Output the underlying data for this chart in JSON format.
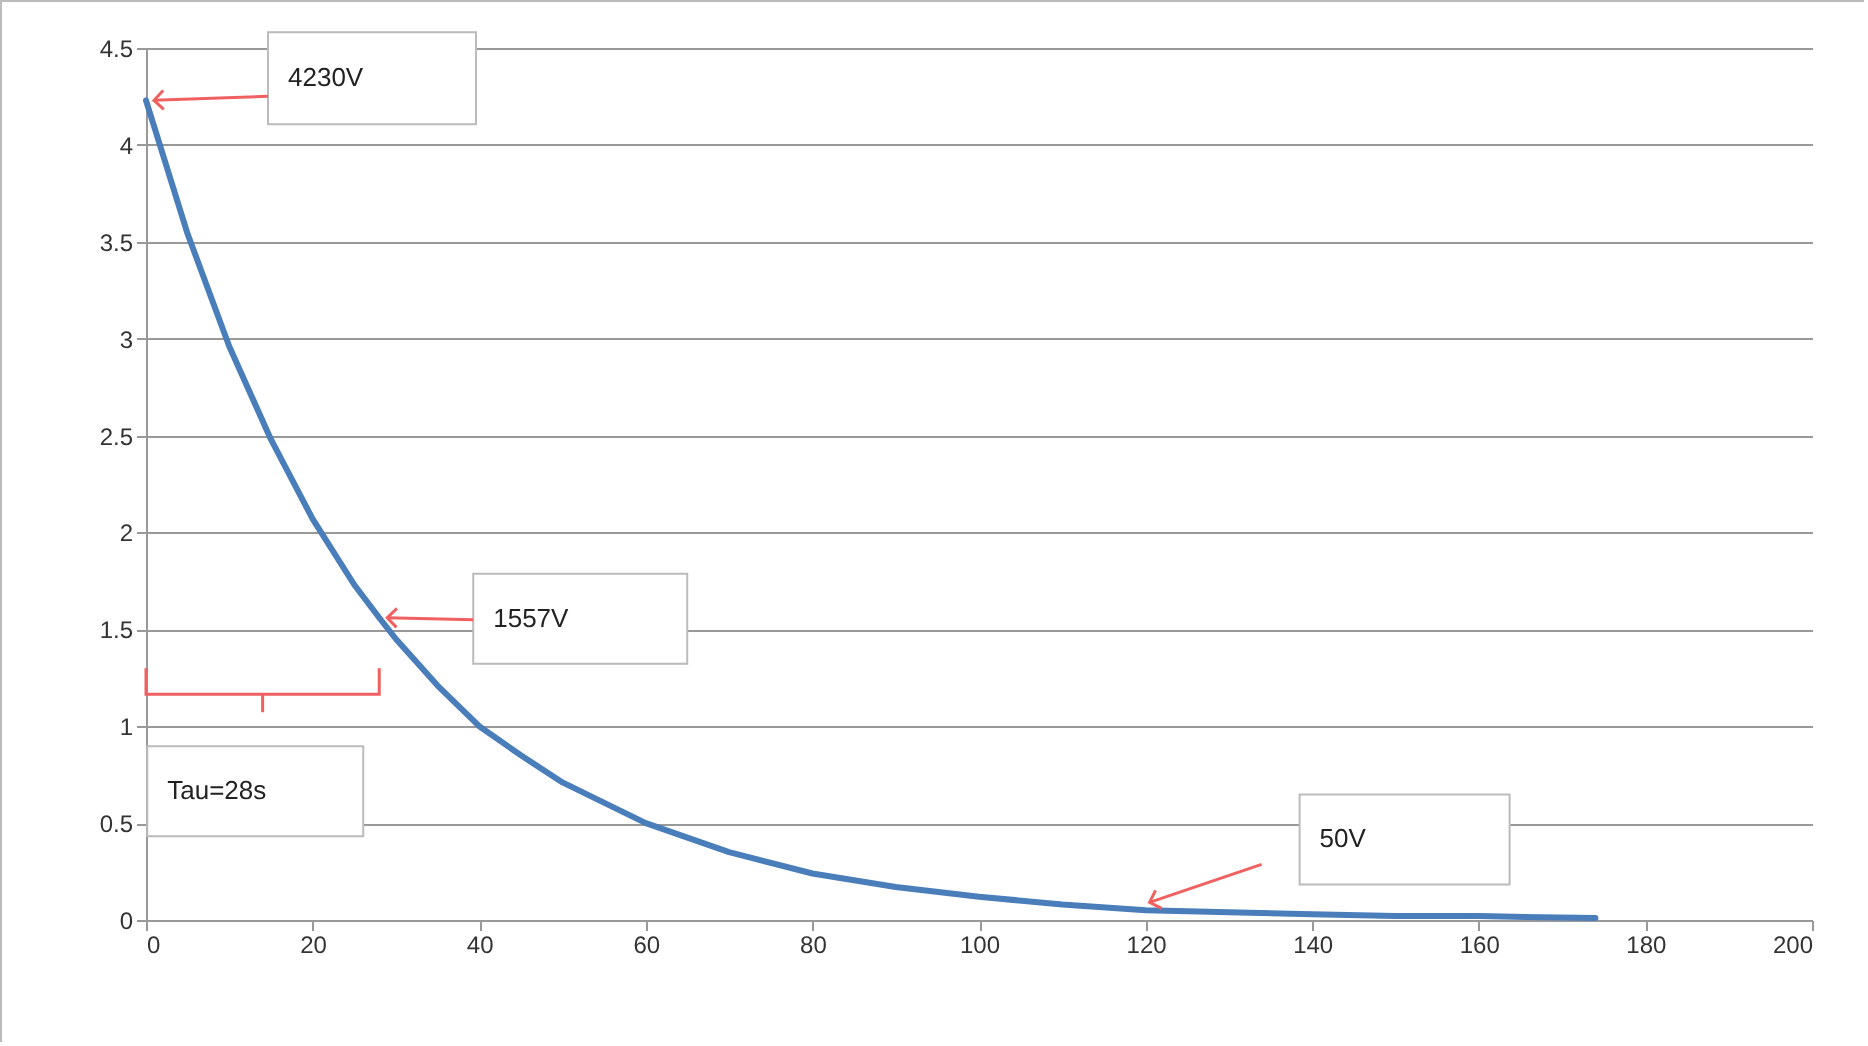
{
  "chart_data": {
    "type": "line",
    "x": [
      0,
      5,
      10,
      15,
      20,
      25,
      28,
      30,
      35,
      40,
      45,
      50,
      60,
      70,
      80,
      90,
      100,
      110,
      120,
      130,
      140,
      150,
      160,
      174
    ],
    "series": [
      {
        "color": "#4a7ebb",
        "values": [
          4.23,
          3.54,
          2.96,
          2.48,
          2.07,
          1.73,
          1.56,
          1.45,
          1.21,
          1.0,
          0.85,
          0.71,
          0.5,
          0.35,
          0.24,
          0.17,
          0.12,
          0.08,
          0.05,
          0.04,
          0.03,
          0.02,
          0.02,
          0.01
        ]
      }
    ],
    "xlim": [
      0,
      200
    ],
    "xticks": [
      0,
      20,
      40,
      60,
      80,
      100,
      120,
      140,
      160,
      180,
      200
    ],
    "ylim": [
      0,
      4.5
    ],
    "yticks": [
      0,
      0.5,
      1,
      1.5,
      2,
      2.5,
      3,
      3.5,
      4,
      4.5
    ],
    "grid": "y",
    "marker": "none",
    "line_style": "solid",
    "annotations": [
      {
        "text": "4230V",
        "x": 0,
        "y": 4.23
      },
      {
        "text": "1557V",
        "x": 28,
        "y": 1.56
      },
      "50V",
      "Tau=28s"
    ]
  }
}
